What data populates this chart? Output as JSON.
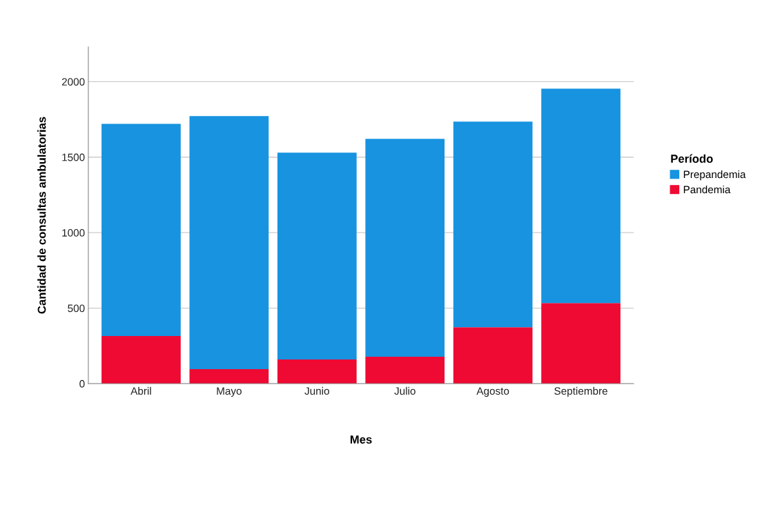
{
  "chart_data": {
    "type": "bar",
    "stacked": true,
    "xlabel": "Mes",
    "ylabel": "Cantidad de consultas ambulatorias",
    "legend_title": "Período",
    "legend": "right",
    "categories": [
      "Abril",
      "Mayo",
      "Junio",
      "Julio",
      "Agosto",
      "Septiembre"
    ],
    "series": [
      {
        "name": "Pandemia",
        "color": "#ee0a33",
        "values": [
          315,
          96,
          160,
          178,
          374,
          534
        ]
      },
      {
        "name": "Prepandemia",
        "color": "#1793e0",
        "values": [
          1406,
          1676,
          1370,
          1443,
          1361,
          1420
        ]
      }
    ],
    "ylim": [
      0,
      2230
    ],
    "yticks": [
      0,
      500,
      1000,
      1500,
      2000
    ],
    "grid": "y"
  }
}
